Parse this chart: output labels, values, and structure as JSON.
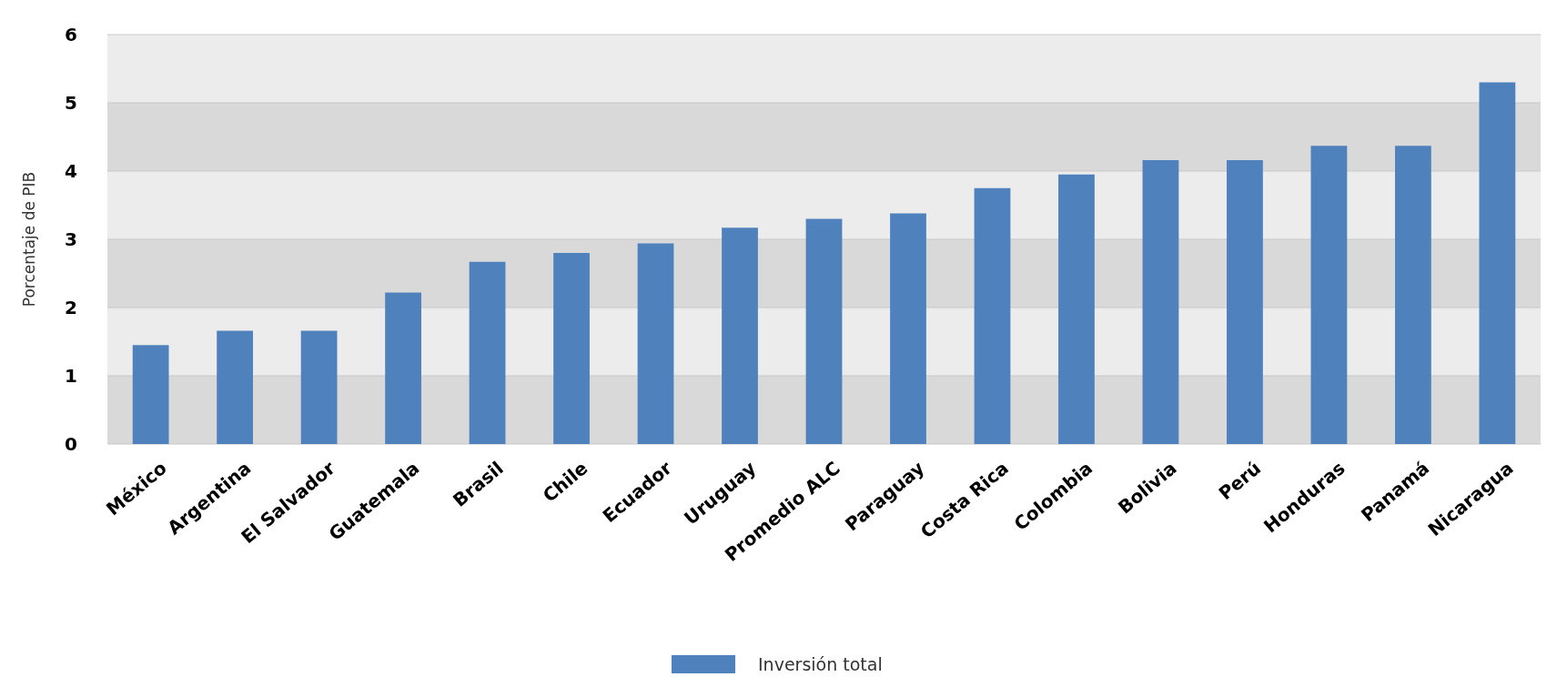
{
  "chart_data": {
    "type": "bar",
    "ylabel": "Porcentaje de PIB",
    "categories": [
      "México",
      "Argentina",
      "El Salvador",
      "Guatemala",
      "Brasil",
      "Chile",
      "Ecuador",
      "Uruguay",
      "Promedio ALC",
      "Paraguay",
      "Costa Rica",
      "Colombia",
      "Bolivia",
      "Perú",
      "Honduras",
      "Panamá",
      "Nicaragua"
    ],
    "series": [
      {
        "name": "Inversión total",
        "color": "#4f81bd",
        "values": [
          1.45,
          1.66,
          1.66,
          2.22,
          2.67,
          2.8,
          2.94,
          3.17,
          3.3,
          3.38,
          3.75,
          3.95,
          4.16,
          4.16,
          4.37,
          4.37,
          5.3
        ]
      }
    ],
    "ylim": [
      0,
      6
    ],
    "yticks": [
      0,
      1,
      2,
      3,
      4,
      5,
      6
    ],
    "grid": "y",
    "legend": "bottom"
  }
}
